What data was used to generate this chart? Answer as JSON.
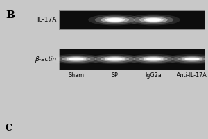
{
  "panel_label": "B",
  "panel_label_bottom": "C",
  "background_color": "#c8c8c8",
  "gel_background": "#0d0d0d",
  "gel_border_color": "#888888",
  "row_labels": [
    "IL-17A",
    "β-actin"
  ],
  "lane_labels": [
    "Sham",
    "SP",
    "IgG2a",
    "Anti-IL-17A"
  ],
  "il17a_intensities": [
    0.0,
    0.95,
    0.92,
    0.0
  ],
  "bactin_intensities": [
    0.88,
    0.92,
    0.9,
    0.78
  ],
  "fig_width": 3.0,
  "fig_height": 2.0,
  "dpi": 100
}
